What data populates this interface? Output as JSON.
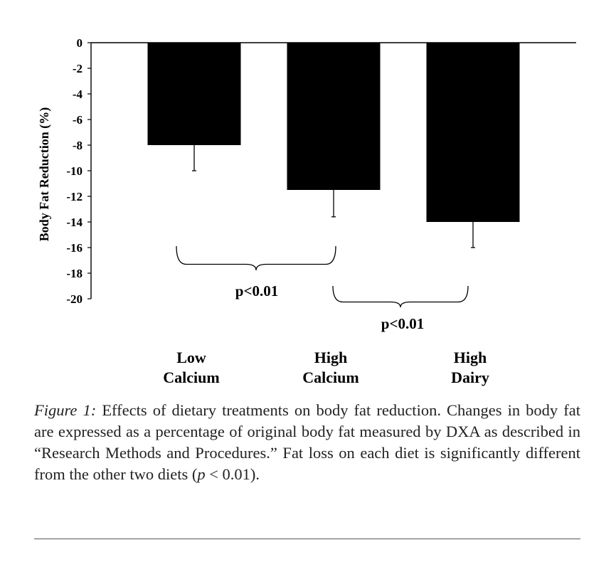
{
  "chart_data": {
    "type": "bar",
    "categories": [
      [
        "Low",
        "Calcium"
      ],
      [
        "High",
        "Calcium"
      ],
      [
        "High",
        "Dairy"
      ]
    ],
    "values": [
      -8,
      -11.5,
      -14
    ],
    "error_bars": [
      2,
      2.1,
      2
    ],
    "ylabel": "Body Fat Reduction (%)",
    "ylim": [
      -20,
      0
    ],
    "yticks": [
      0,
      -2,
      -4,
      -6,
      -8,
      -10,
      -12,
      -14,
      -16,
      -18,
      -20
    ],
    "bar_color": "#000000",
    "grid": false,
    "annotations": [
      {
        "label": "p<0.01",
        "from_category": 0,
        "to_category": 1
      },
      {
        "label": "p<0.01",
        "from_category": 1,
        "to_category": 2
      }
    ]
  },
  "caption": {
    "prefix": "Figure 1:",
    "body": " Effects of dietary treatments on body fat reduction. Changes in body fat are expressed as a percentage of original body fat measured by DXA as described in “Research Methods and Procedures.” Fat loss on each diet is significantly different from the other two diets (",
    "p_var": "p",
    "p_rest": " < 0.01)."
  }
}
